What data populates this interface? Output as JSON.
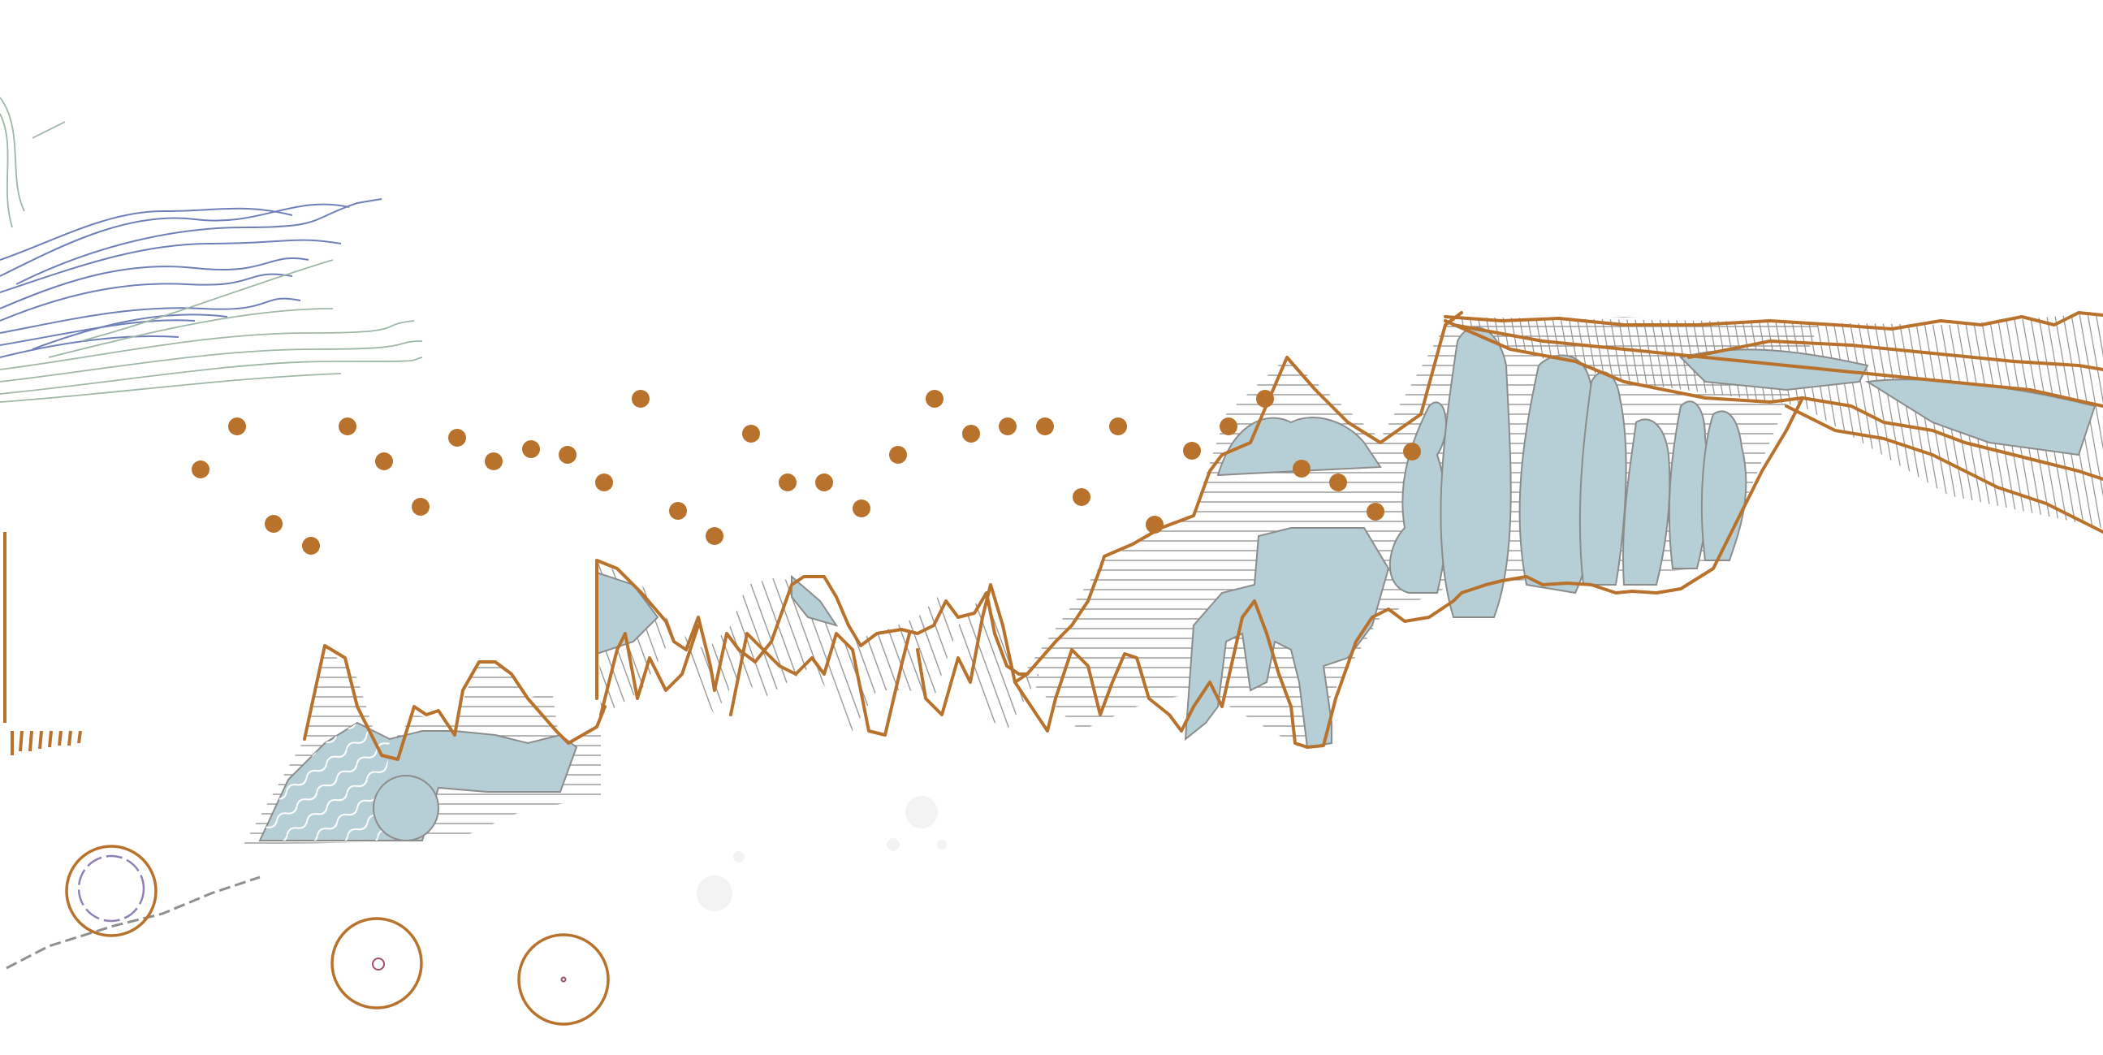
{
  "artwork": {
    "colors": {
      "background": "#ffffff",
      "accent_orange": "#b8722c",
      "water_blue": "#b6ced5",
      "hatch_gray": "#8f8f8f",
      "stroke_blue": "#6f7fb8",
      "stroke_green": "#9fb7a6"
    },
    "elements": [
      "ridge-outline",
      "hatched-regions",
      "blue-rock-forms",
      "scattered-dots",
      "flow-lines",
      "ring-circles"
    ]
  }
}
